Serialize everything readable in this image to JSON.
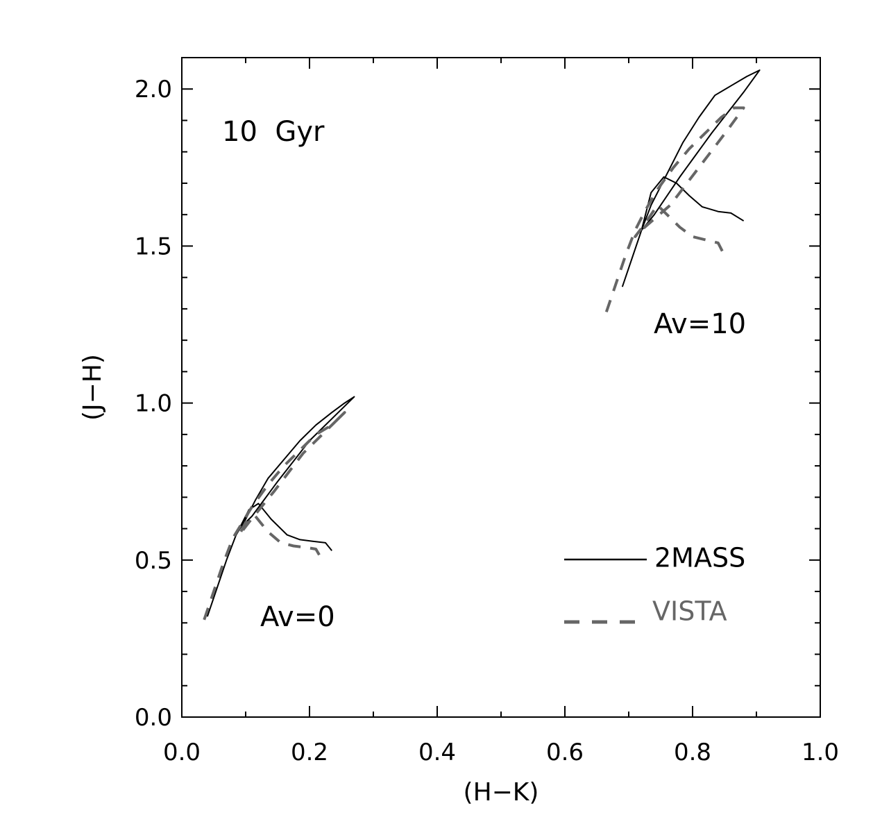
{
  "chart_data": {
    "type": "line",
    "title": "",
    "xlabel": "(H−K)",
    "ylabel": "(J−H)",
    "xlim": [
      0.0,
      1.0
    ],
    "ylim": [
      0.0,
      2.1
    ],
    "xticks": [
      0.0,
      0.2,
      0.4,
      0.6,
      0.8,
      1.0
    ],
    "xtick_labels": [
      "0.0",
      "0.2",
      "0.4",
      "0.6",
      "0.8",
      "1.0"
    ],
    "yticks": [
      0.0,
      0.5,
      1.0,
      1.5,
      2.0
    ],
    "ytick_labels": [
      "0.0",
      "0.5",
      "1.0",
      "1.5",
      "2.0"
    ],
    "annotations": [
      {
        "text": "10  Gyr",
        "x": 0.065,
        "y": 1.88
      },
      {
        "text": "Av=0",
        "x": 0.125,
        "y": 0.29
      },
      {
        "text": "Av=10",
        "x": 0.74,
        "y": 1.23
      }
    ],
    "legend": {
      "position": "bottom-right"
    },
    "series": [
      {
        "name": "2MASS",
        "group": "Av=0",
        "color": "#000000",
        "dash": "solid",
        "x": [
          0.04,
          0.055,
          0.07,
          0.085,
          0.1,
          0.115,
          0.135,
          0.16,
          0.185,
          0.21,
          0.235,
          0.255,
          0.27,
          0.25,
          0.2,
          0.15,
          0.11,
          0.09,
          0.105,
          0.12,
          0.14,
          0.165,
          0.185,
          0.205,
          0.225,
          0.235
        ],
        "y": [
          0.32,
          0.41,
          0.5,
          0.58,
          0.63,
          0.69,
          0.76,
          0.82,
          0.88,
          0.93,
          0.97,
          1.0,
          1.02,
          0.98,
          0.88,
          0.75,
          0.64,
          0.6,
          0.66,
          0.68,
          0.63,
          0.58,
          0.565,
          0.56,
          0.555,
          0.53
        ]
      },
      {
        "name": "VISTA",
        "group": "Av=0",
        "color": "#666666",
        "dash": "dashed",
        "x": [
          0.035,
          0.05,
          0.065,
          0.08,
          0.095,
          0.11,
          0.135,
          0.16,
          0.185,
          0.21,
          0.235,
          0.255,
          0.235,
          0.19,
          0.145,
          0.105,
          0.09,
          0.1,
          0.115,
          0.135,
          0.155,
          0.175,
          0.195,
          0.21,
          0.22
        ],
        "y": [
          0.31,
          0.4,
          0.49,
          0.57,
          0.62,
          0.67,
          0.74,
          0.8,
          0.85,
          0.9,
          0.93,
          0.97,
          0.93,
          0.84,
          0.72,
          0.62,
          0.58,
          0.62,
          0.64,
          0.59,
          0.555,
          0.545,
          0.54,
          0.535,
          0.5
        ]
      },
      {
        "name": "2MASS",
        "group": "Av=10",
        "color": "#000000",
        "dash": "solid",
        "x": [
          0.69,
          0.705,
          0.72,
          0.735,
          0.75,
          0.765,
          0.785,
          0.81,
          0.835,
          0.86,
          0.885,
          0.905,
          0.88,
          0.83,
          0.78,
          0.74,
          0.72,
          0.735,
          0.755,
          0.775,
          0.795,
          0.815,
          0.84,
          0.86,
          0.88
        ],
        "y": [
          1.37,
          1.46,
          1.55,
          1.63,
          1.69,
          1.75,
          1.83,
          1.91,
          1.98,
          2.01,
          2.04,
          2.06,
          1.99,
          1.86,
          1.72,
          1.6,
          1.55,
          1.67,
          1.72,
          1.7,
          1.66,
          1.625,
          1.61,
          1.605,
          1.58
        ]
      },
      {
        "name": "VISTA",
        "group": "Av=10",
        "color": "#666666",
        "dash": "dashed",
        "x": [
          0.665,
          0.68,
          0.695,
          0.71,
          0.725,
          0.745,
          0.77,
          0.795,
          0.82,
          0.845,
          0.865,
          0.88,
          0.855,
          0.81,
          0.765,
          0.725,
          0.71,
          0.725,
          0.745,
          0.76,
          0.78,
          0.8,
          0.82,
          0.84,
          0.85
        ],
        "y": [
          1.29,
          1.38,
          1.47,
          1.55,
          1.61,
          1.68,
          1.75,
          1.81,
          1.86,
          1.91,
          1.94,
          1.94,
          1.87,
          1.75,
          1.63,
          1.56,
          1.53,
          1.57,
          1.63,
          1.6,
          1.56,
          1.53,
          1.52,
          1.51,
          1.47
        ]
      }
    ]
  }
}
